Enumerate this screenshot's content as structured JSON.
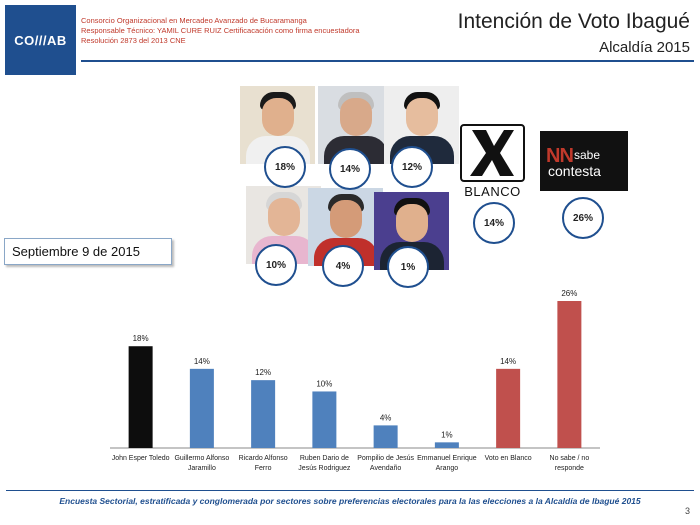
{
  "header": {
    "logo_text": "CO///AB",
    "org_lines": [
      "Consorcio Organizacional en Mercadeo Avanzado de Bucaramanga",
      "Responsable Técnico: YAMIL CURE RUIZ  Certificacación  como firma encuestadora",
      "Resolución 2873 del 2013 CNE"
    ],
    "title": "Intención de Voto Ibagué",
    "subtitle": "Alcaldía 2015"
  },
  "candidates_panel": {
    "percents": [
      "18%",
      "14%",
      "12%",
      "10%",
      "4%",
      "1%"
    ],
    "blanco": {
      "label": "BLANCO",
      "percent": "14%"
    },
    "ns": {
      "nn": "NN",
      "sabe": "sabe",
      "contesta": "contesta",
      "percent": "26%"
    }
  },
  "date_label": "Septiembre 9 de  2015",
  "chart_data": {
    "type": "bar",
    "categories": [
      "John Esper Toledo",
      "Guillermo Alfonso Jaramillo",
      "Ricardo Alfonso Ferro",
      "Ruben Dario de Jesús Rodriguez",
      "Pompilio de Jesús Avendaño",
      "Emmanuel Enrique Arango",
      "Voto en Blanco",
      "No sabe / no responde"
    ],
    "category_lines": [
      [
        "John Esper Toledo"
      ],
      [
        "Guillermo Alfonso",
        "Jaramillo"
      ],
      [
        "Ricardo Alfonso",
        "Ferro"
      ],
      [
        "Ruben Dario de",
        "Jesús Rodriguez"
      ],
      [
        "Pompilio de Jesús",
        "Avendaño"
      ],
      [
        "Emmanuel Enrique",
        "Arango"
      ],
      [
        "Voto en Blanco"
      ],
      [
        "No sabe / no",
        "responde"
      ]
    ],
    "values": [
      18,
      14,
      12,
      10,
      4,
      1,
      14,
      26
    ],
    "value_labels": [
      "18%",
      "14%",
      "12%",
      "10%",
      "4%",
      "1%",
      "14%",
      "26%"
    ],
    "colors": [
      "#0d0d0d",
      "#4f81bd",
      "#4f81bd",
      "#4f81bd",
      "#4f81bd",
      "#4f81bd",
      "#c0504d",
      "#c0504d"
    ],
    "ylim": [
      0,
      26
    ],
    "grid": false
  },
  "footer": {
    "text": "Encuesta  Sectorial, estratificada y conglomerada por sectores sobre preferencias electorales para la las elecciones a la Alcaldía de Ibagué 2015",
    "page": "3"
  }
}
